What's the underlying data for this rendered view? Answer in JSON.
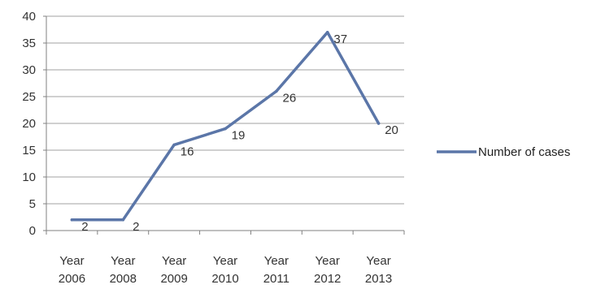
{
  "chart_data": {
    "type": "line",
    "categories": [
      [
        "Year",
        "2006"
      ],
      [
        "Year",
        "2008"
      ],
      [
        "Year",
        "2009"
      ],
      [
        "Year",
        "2010"
      ],
      [
        "Year",
        "2011"
      ],
      [
        "Year",
        "2012"
      ],
      [
        "Year",
        "2013"
      ]
    ],
    "series": [
      {
        "name": "Number of cases",
        "values": [
          2,
          2,
          16,
          19,
          26,
          37,
          20
        ]
      }
    ],
    "data_labels": [
      "2",
      "2",
      "16",
      "19",
      "26",
      "37",
      "20"
    ],
    "ylim": [
      0,
      40
    ],
    "yticks": [
      "0",
      "5",
      "10",
      "15",
      "20",
      "25",
      "30",
      "35",
      "40"
    ],
    "grid": true,
    "legend_position": "right",
    "colors": {
      "line": "#5b76a8",
      "grid": "#a0a0a0",
      "axis": "#808080"
    }
  }
}
